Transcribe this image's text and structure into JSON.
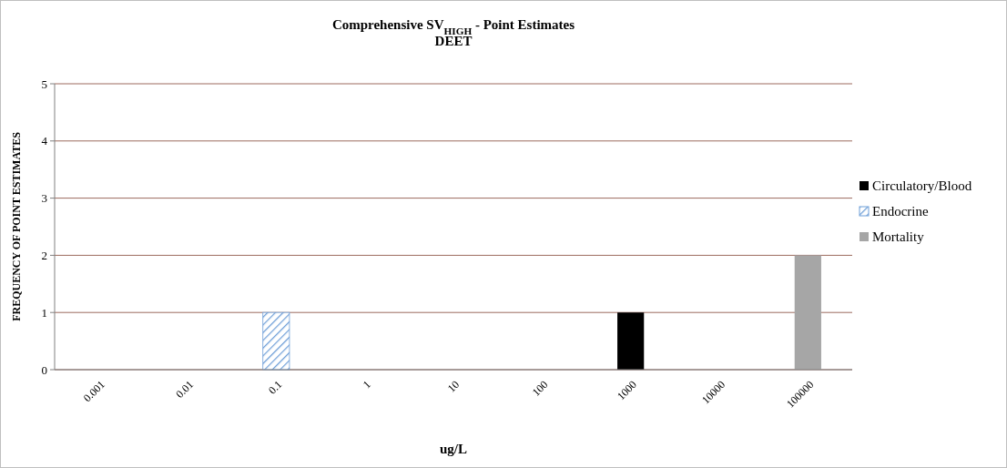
{
  "chart_data": {
    "type": "bar",
    "title": "Comprehensive SV$_{HIGH}$  -  Point Estimates",
    "subtitle": "DEET",
    "xlabel": "ug/L",
    "ylabel": "FREQUENCY  OF POINT ESTIMATES",
    "categories": [
      "0.001",
      "0.01",
      "0.1",
      "1",
      "10",
      "100",
      "1000",
      "10000",
      "100000"
    ],
    "series": [
      {
        "name": "Circulatory/Blood",
        "color": "#000000",
        "values": [
          null,
          null,
          null,
          null,
          null,
          null,
          1,
          null,
          null
        ]
      },
      {
        "name": "Endocrine",
        "color": "#6f9fd8",
        "values": [
          null,
          null,
          1,
          null,
          null,
          null,
          null,
          null,
          null
        ]
      },
      {
        "name": "Mortality",
        "color": "#a6a6a6",
        "values": [
          null,
          null,
          null,
          null,
          null,
          null,
          null,
          null,
          2
        ]
      }
    ],
    "stacked": true,
    "ylim": [
      0,
      5
    ],
    "yticks": [
      0,
      1,
      2,
      3,
      4,
      5
    ],
    "grid": "y",
    "legend": "right"
  }
}
